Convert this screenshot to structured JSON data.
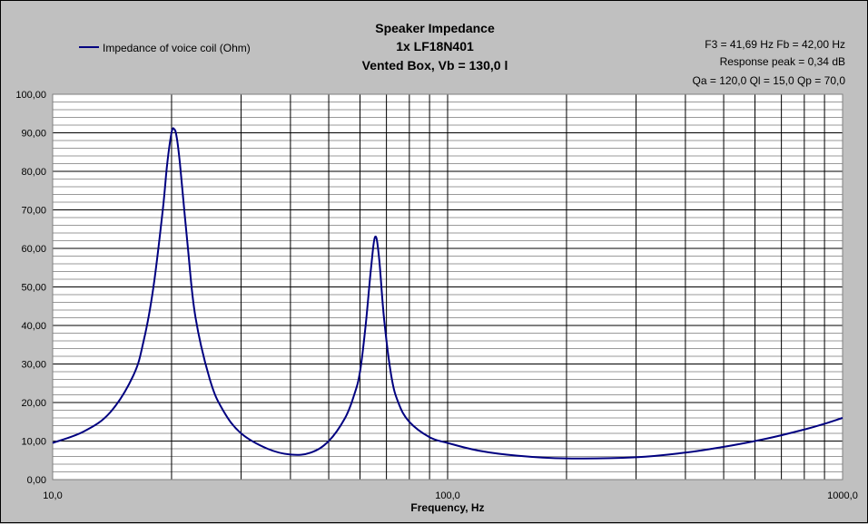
{
  "chart_data": {
    "type": "line",
    "title": [
      "Speaker Impedance",
      "1x LF18N401",
      "Vented Box, Vb = 130,0 l"
    ],
    "info": [
      "F3 = 41,69 Hz  Fb = 42,00 Hz",
      "Response peak = 0,34 dB",
      "Qa = 120,0  Ql = 15,0  Qp = 70,0"
    ],
    "xlabel": "Frequency, Hz",
    "ylabel": "",
    "xscale": "log",
    "xlim": [
      10,
      1000
    ],
    "ylim": [
      0,
      100
    ],
    "x_tick_labels": [
      "10,0",
      "100,0",
      "1000,0"
    ],
    "y_tick_labels": [
      "0,00",
      "10,00",
      "20,00",
      "30,00",
      "40,00",
      "50,00",
      "60,00",
      "70,00",
      "80,00",
      "90,00",
      "100,00"
    ],
    "grid": true,
    "legend_position": "top-left",
    "series": [
      {
        "name": "Impedance of voice coil (Ohm)",
        "color": "#000080",
        "x": [
          10,
          12,
          14,
          16,
          17,
          18,
          19,
          19.5,
          20,
          20.3,
          20.6,
          21,
          22,
          23,
          25,
          27,
          30,
          35,
          40,
          45,
          50,
          55,
          58,
          60,
          62,
          64,
          65.5,
          67,
          69,
          72,
          75,
          80,
          90,
          100,
          120,
          150,
          200,
          300,
          400,
          500,
          600,
          700,
          800,
          900,
          1000
        ],
        "values": [
          9.5,
          12.5,
          17.5,
          27,
          36,
          50,
          70,
          82,
          90,
          91,
          89,
          82,
          60,
          42,
          26,
          18,
          12,
          8,
          6.5,
          7,
          10,
          16,
          22,
          28,
          40,
          55,
          63,
          58,
          42,
          27,
          20,
          15,
          11,
          9.5,
          7.5,
          6.2,
          5.5,
          5.8,
          7,
          8.5,
          10,
          11.5,
          13,
          14.5,
          16
        ]
      }
    ]
  }
}
